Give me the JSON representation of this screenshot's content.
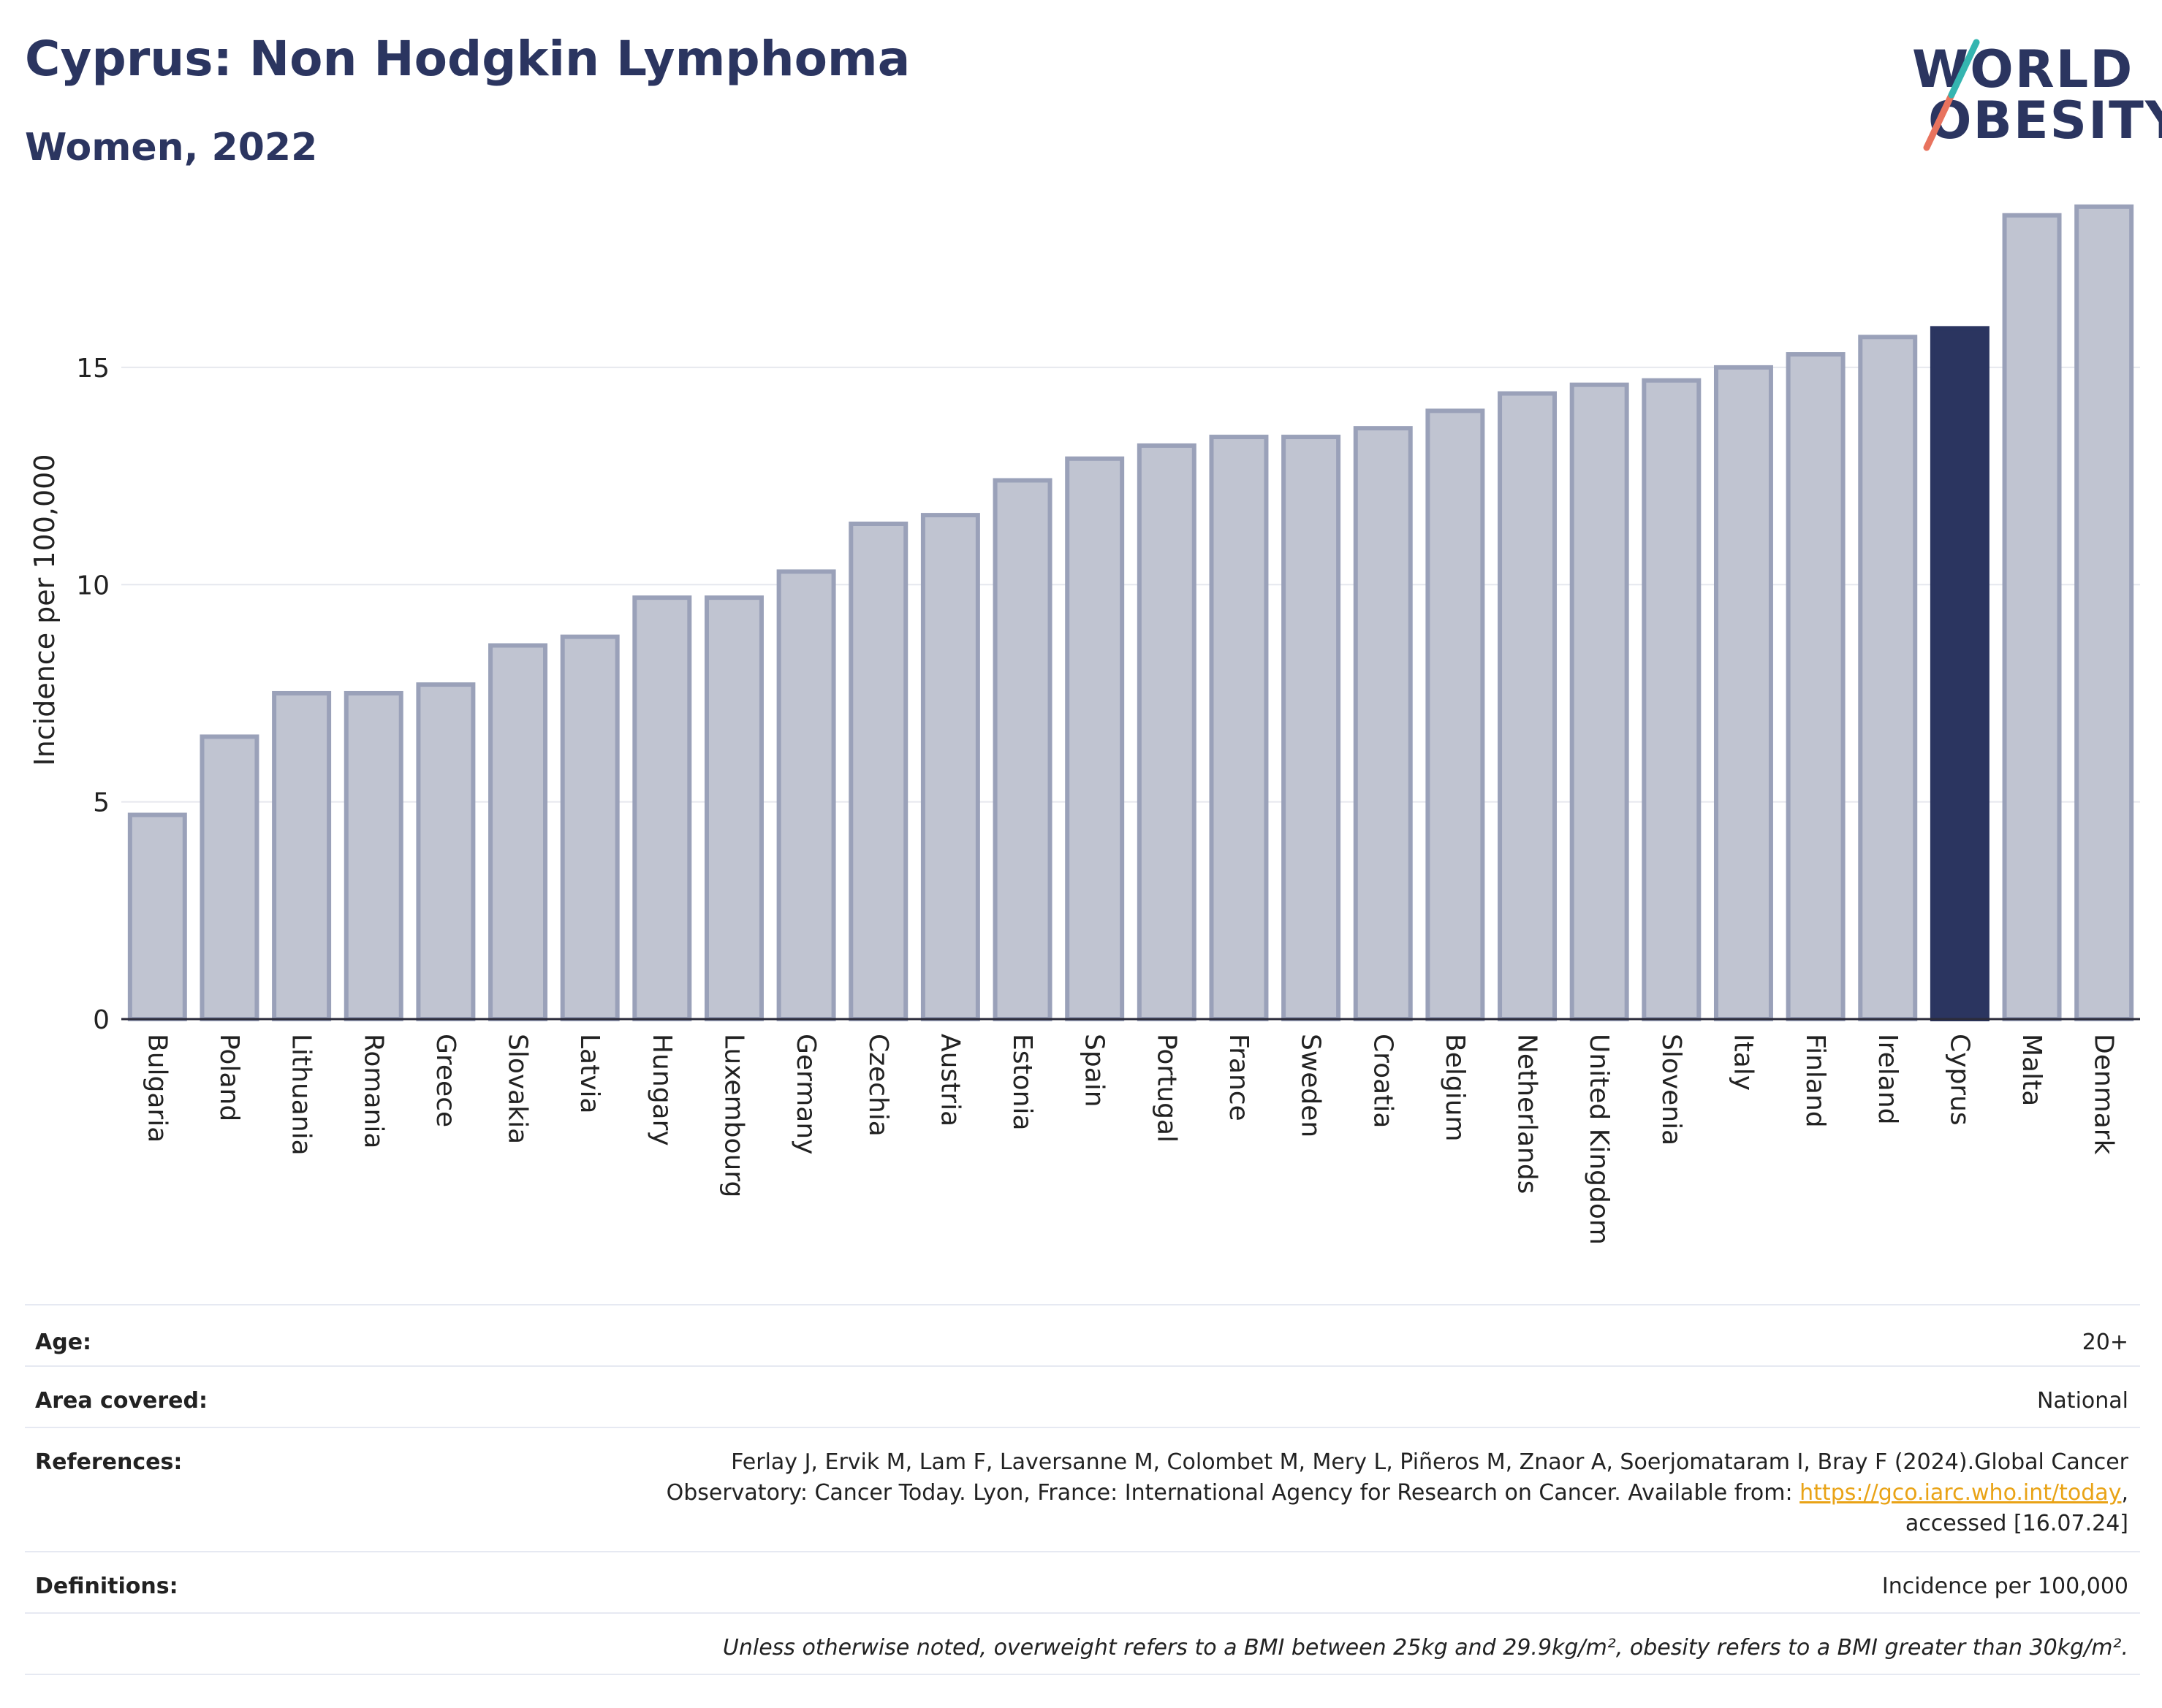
{
  "header": {
    "title": "Cyprus: Non Hodgkin Lymphoma",
    "subtitle": "Women, 2022"
  },
  "logo": {
    "line1": "WORLD",
    "line2": "OBESITY"
  },
  "colors": {
    "bar_default": "#c0c4d1",
    "bar_stroke": "#9aa1b9",
    "bar_highlight": "#2b3560",
    "title": "#2b3560",
    "link": "#e9a316"
  },
  "chart_data": {
    "type": "bar",
    "ylabel": "Incidence per 100,000",
    "xlabel": "",
    "ylim": [
      0,
      19
    ],
    "yticks": [
      0,
      5,
      10,
      15
    ],
    "grid": true,
    "highlight": "Cyprus",
    "categories": [
      "Bulgaria",
      "Poland",
      "Lithuania",
      "Romania",
      "Greece",
      "Slovakia",
      "Latvia",
      "Hungary",
      "Luxembourg",
      "Germany",
      "Czechia",
      "Austria",
      "Estonia",
      "Spain",
      "Portugal",
      "France",
      "Sweden",
      "Croatia",
      "Belgium",
      "Netherlands",
      "United Kingdom",
      "Slovenia",
      "Italy",
      "Finland",
      "Ireland",
      "Cyprus",
      "Malta",
      "Denmark"
    ],
    "values": [
      4.7,
      6.5,
      7.5,
      7.5,
      7.7,
      8.6,
      8.8,
      9.7,
      9.7,
      10.3,
      11.4,
      11.6,
      12.4,
      12.9,
      13.2,
      13.4,
      13.4,
      13.6,
      14.0,
      14.4,
      14.6,
      14.7,
      15.0,
      15.3,
      15.7,
      15.9,
      18.5,
      18.7
    ]
  },
  "info": {
    "age_label": "Age:",
    "age_value": "20+",
    "area_label": "Area covered:",
    "area_value": "National",
    "references_label": "References:",
    "references_text_1": "Ferlay J, Ervik M, Lam F, Laversanne M, Colombet M, Mery L, Piñeros M, Znaor A, Soerjomataram I, Bray F (2024).Global Cancer",
    "references_text_2": "Observatory: Cancer Today. Lyon, France: International Agency for Research on Cancer. Available from: ",
    "references_link": "https://gco.iarc.who.int/today",
    "references_text_3": ",",
    "references_text_4": "accessed [16.07.24]",
    "definitions_label": "Definitions:",
    "definitions_value": "Incidence per 100,000",
    "note": "Unless otherwise noted, overweight refers to a BMI between 25kg and 29.9kg/m², obesity refers to a BMI greater than 30kg/m²."
  }
}
